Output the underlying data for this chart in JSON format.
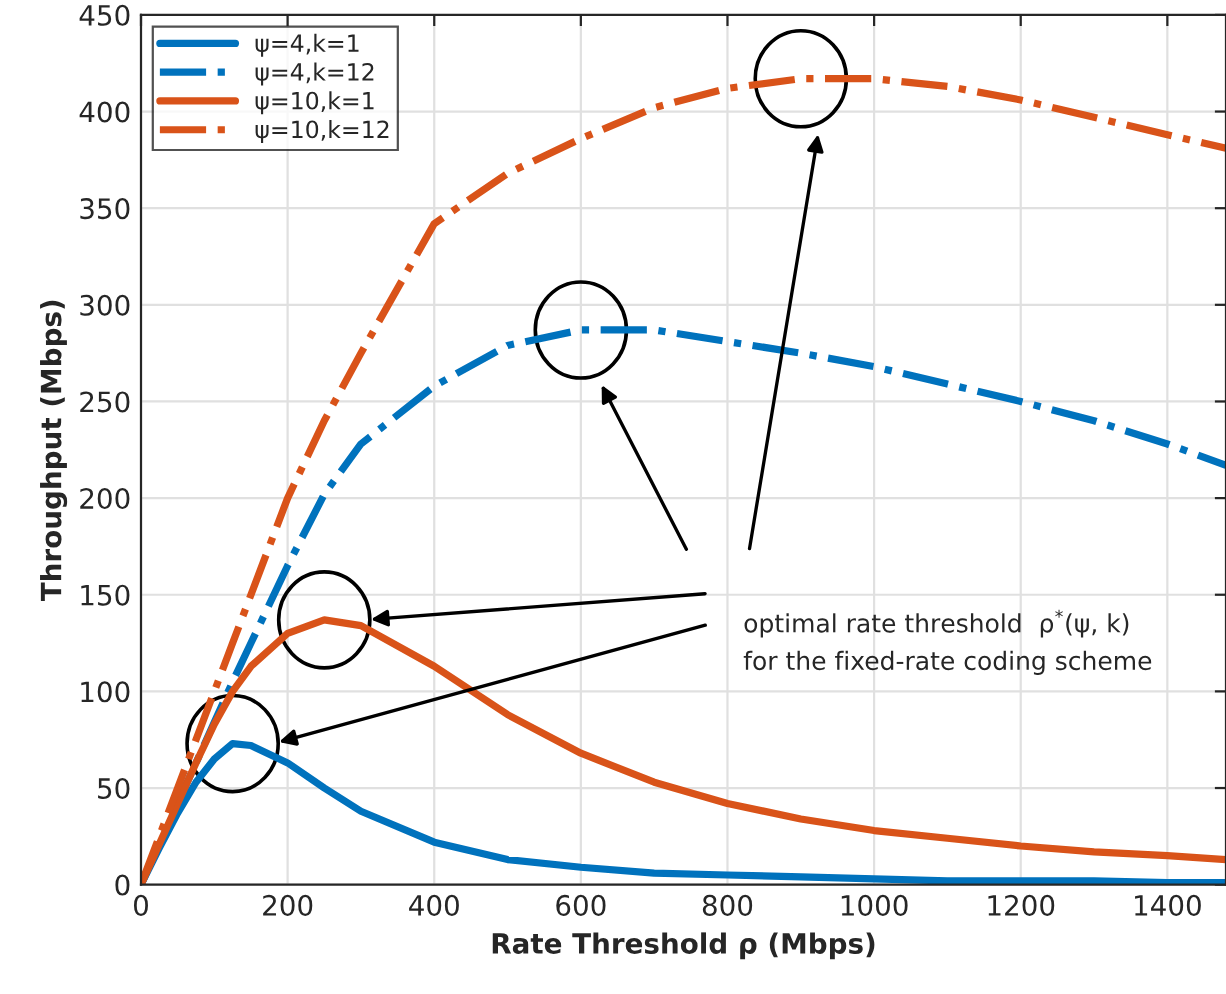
{
  "chart_data": {
    "type": "line",
    "xlabel": "Rate Threshold ρ (Mbps)",
    "ylabel": "Throughput (Mbps)",
    "x": [
      0,
      25,
      50,
      75,
      100,
      125,
      150,
      200,
      250,
      300,
      400,
      500,
      600,
      700,
      800,
      900,
      1000,
      1100,
      1200,
      1300,
      1400,
      1480
    ],
    "series": [
      {
        "name": "ψ=4,k=1",
        "color": "#0072bd",
        "line_style": "solid",
        "values": [
          0,
          19,
          37,
          53,
          65,
          73,
          72,
          63,
          50,
          38,
          22,
          13,
          9,
          6,
          5,
          4,
          3,
          2,
          2,
          2,
          1,
          1
        ]
      },
      {
        "name": "ψ=4,k=12",
        "color": "#0072bd",
        "line_style": "dashed",
        "values": [
          0,
          21,
          42,
          63,
          84,
          105,
          125,
          165,
          202,
          228,
          258,
          279,
          287,
          287,
          281,
          275,
          268,
          259,
          250,
          240,
          228,
          217
        ]
      },
      {
        "name": "ψ=10,k=1",
        "color": "#d95319",
        "line_style": "solid",
        "values": [
          0,
          21,
          42,
          63,
          83,
          100,
          113,
          130,
          137,
          134,
          113,
          88,
          68,
          53,
          42,
          34,
          28,
          24,
          20,
          17,
          15,
          13
        ]
      },
      {
        "name": "ψ=10,k=12",
        "color": "#d95319",
        "line_style": "dashed",
        "values": [
          0,
          25,
          50,
          75,
          100,
          125,
          150,
          200,
          240,
          275,
          342,
          368,
          386,
          402,
          412,
          417,
          417,
          413,
          406,
          397,
          388,
          381
        ]
      }
    ],
    "annotations": [
      "optimal rate threshold  ρ$^{*}$(ψ, k)",
      "for the fixed-rate coding scheme"
    ],
    "xlim": [
      0,
      1480
    ],
    "ylim": [
      0,
      450
    ],
    "xticks": [
      0,
      200,
      400,
      600,
      800,
      1000,
      1200,
      1400
    ],
    "yticks": [
      0,
      50,
      100,
      150,
      200,
      250,
      300,
      350,
      400,
      450
    ],
    "grid": true,
    "legend": "top left",
    "marker": "none"
  }
}
